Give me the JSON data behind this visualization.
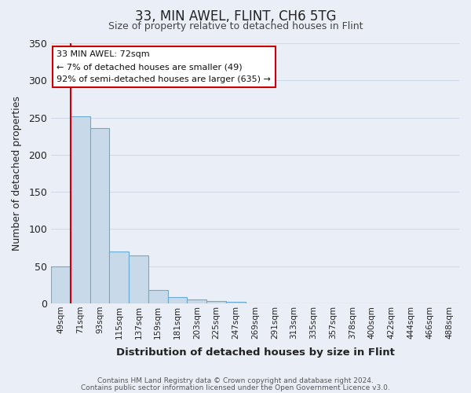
{
  "title": "33, MIN AWEL, FLINT, CH6 5TG",
  "subtitle": "Size of property relative to detached houses in Flint",
  "xlabel": "Distribution of detached houses by size in Flint",
  "ylabel": "Number of detached properties",
  "bar_labels": [
    "49sqm",
    "71sqm",
    "93sqm",
    "115sqm",
    "137sqm",
    "159sqm",
    "181sqm",
    "203sqm",
    "225sqm",
    "247sqm",
    "269sqm",
    "291sqm",
    "313sqm",
    "335sqm",
    "357sqm",
    "378sqm",
    "400sqm",
    "422sqm",
    "444sqm",
    "466sqm",
    "488sqm"
  ],
  "bar_values": [
    50,
    252,
    236,
    70,
    65,
    18,
    8,
    5,
    3,
    2,
    0,
    0,
    0,
    0,
    0,
    0,
    0,
    0,
    0,
    0,
    0
  ],
  "bar_color": "#c8daea",
  "bar_edge_color": "#6aabd2",
  "ylim": [
    0,
    350
  ],
  "yticks": [
    0,
    50,
    100,
    150,
    200,
    250,
    300,
    350
  ],
  "property_line_color": "#cc0000",
  "annotation_title": "33 MIN AWEL: 72sqm",
  "annotation_line1": "← 7% of detached houses are smaller (49)",
  "annotation_line2": "92% of semi-detached houses are larger (635) →",
  "annotation_box_color": "#ffffff",
  "annotation_box_edge": "#cc0000",
  "footnote1": "Contains HM Land Registry data © Crown copyright and database right 2024.",
  "footnote2": "Contains public sector information licensed under the Open Government Licence v3.0.",
  "background_color": "#eaeff7",
  "grid_color": "#d0daea"
}
